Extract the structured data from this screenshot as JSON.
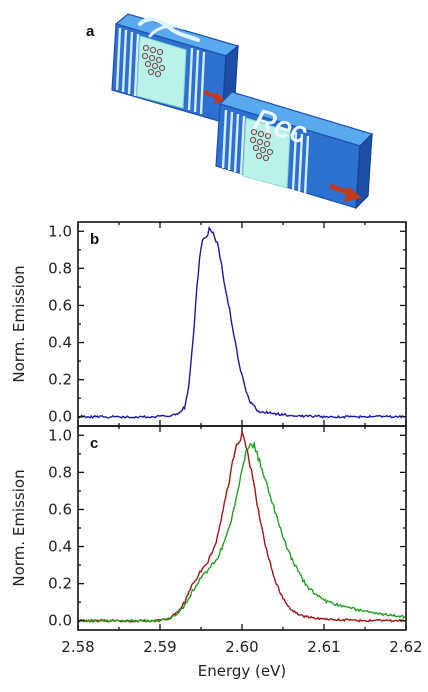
{
  "schematic": {
    "panel_label": "a",
    "device2_text": "Rec"
  },
  "chart_data": [
    {
      "type": "line",
      "panel_label": "b",
      "ylabel": "Norm. Emission",
      "xlabel": "",
      "xlim": [
        2.58,
        2.62
      ],
      "ylim": [
        -0.05,
        1.05
      ],
      "x_ticks": [
        2.58,
        2.59,
        2.6,
        2.61,
        2.62
      ],
      "y_ticks": [
        "0.0",
        "0.2",
        "0.4",
        "0.6",
        "0.8",
        "1.0"
      ],
      "series": [
        {
          "color": "#1a1aa0",
          "x": [
            2.58,
            2.585,
            2.59,
            2.592,
            2.593,
            2.5935,
            2.594,
            2.5945,
            2.595,
            2.5955,
            2.596,
            2.5965,
            2.597,
            2.5975,
            2.598,
            2.5985,
            2.599,
            2.5995,
            2.6,
            2.6005,
            2.601,
            2.602,
            2.605,
            2.61,
            2.62
          ],
          "y": [
            0.0,
            0.0,
            0.0,
            0.01,
            0.05,
            0.16,
            0.4,
            0.7,
            0.92,
            0.98,
            1.0,
            0.98,
            0.93,
            0.82,
            0.68,
            0.58,
            0.44,
            0.32,
            0.22,
            0.14,
            0.08,
            0.03,
            0.01,
            0.0,
            0.0
          ]
        }
      ]
    },
    {
      "type": "line",
      "panel_label": "c",
      "ylabel": "Norm. Emission",
      "xlabel": "Energy (eV)",
      "xlim": [
        2.58,
        2.62
      ],
      "ylim": [
        -0.05,
        1.05
      ],
      "x_ticks": [
        2.58,
        2.59,
        2.6,
        2.61,
        2.62
      ],
      "x_tick_labels": [
        "2.58",
        "2.59",
        "2.60",
        "2.61",
        "2.62"
      ],
      "y_ticks": [
        "0.0",
        "0.2",
        "0.4",
        "0.6",
        "0.8",
        "1.0"
      ],
      "series": [
        {
          "color": "#a01818",
          "x": [
            2.58,
            2.585,
            2.59,
            2.591,
            2.592,
            2.593,
            2.594,
            2.595,
            2.596,
            2.597,
            2.598,
            2.599,
            2.5995,
            2.6,
            2.6005,
            2.601,
            2.602,
            2.603,
            2.604,
            2.605,
            2.606,
            2.607,
            2.608,
            2.61,
            2.615,
            2.62
          ],
          "y": [
            0.0,
            0.0,
            0.0,
            0.01,
            0.04,
            0.1,
            0.2,
            0.27,
            0.33,
            0.45,
            0.66,
            0.88,
            0.96,
            1.0,
            0.95,
            0.84,
            0.6,
            0.38,
            0.22,
            0.12,
            0.06,
            0.03,
            0.02,
            0.01,
            0.0,
            0.0
          ]
        },
        {
          "color": "#22a022",
          "x": [
            2.58,
            2.585,
            2.59,
            2.591,
            2.592,
            2.593,
            2.594,
            2.595,
            2.596,
            2.597,
            2.598,
            2.599,
            2.6,
            2.6005,
            2.601,
            2.6015,
            2.602,
            2.603,
            2.604,
            2.605,
            2.606,
            2.607,
            2.608,
            2.61,
            2.612,
            2.615,
            2.618,
            2.62
          ],
          "y": [
            0.0,
            0.0,
            0.0,
            0.01,
            0.03,
            0.08,
            0.16,
            0.23,
            0.28,
            0.34,
            0.44,
            0.6,
            0.8,
            0.9,
            0.96,
            0.94,
            0.88,
            0.74,
            0.6,
            0.45,
            0.34,
            0.25,
            0.18,
            0.11,
            0.08,
            0.05,
            0.03,
            0.02
          ]
        }
      ]
    }
  ]
}
